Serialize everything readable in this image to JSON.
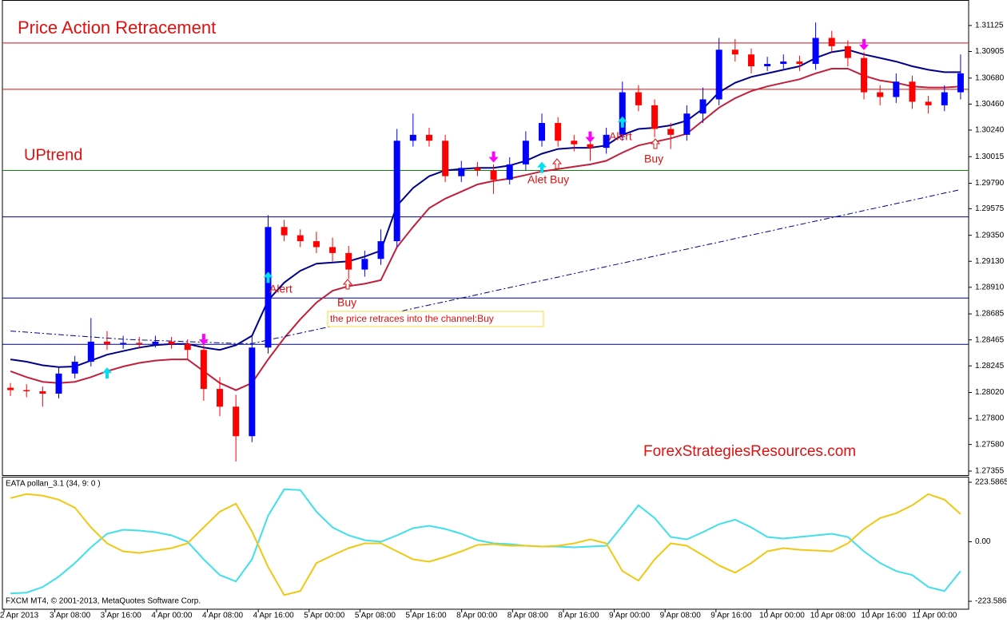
{
  "chart_data": [
    {
      "type": "candlestick",
      "title": "Price Action Retracement",
      "watermark": "ForexStrategiesResources.com",
      "annotations": [
        "UPtrend",
        "Alert",
        "Buy",
        "the price retraces into the channel:Buy",
        "Alet Buy",
        "Alert",
        "Buy"
      ],
      "up_color": "#0000ff",
      "down_color": "#ff0000",
      "open": [
        1.2806,
        1.2804,
        1.2803,
        1.2801,
        1.2818,
        1.2828,
        1.2845,
        1.2843,
        1.2844,
        1.2843,
        1.2845,
        1.2843,
        1.2838,
        1.2805,
        1.279,
        1.2765,
        1.284,
        1.2942,
        1.2935,
        1.293,
        1.2925,
        1.292,
        1.2906,
        1.2915,
        1.293,
        1.3015,
        1.302,
        1.3015,
        1.2985,
        1.2992,
        1.299,
        1.2982,
        1.2995,
        1.3015,
        1.303,
        1.3015,
        1.3012,
        1.3009,
        1.302,
        1.3056,
        1.3045,
        1.3025,
        1.302,
        1.3038,
        1.305,
        1.3092,
        1.3088,
        1.3078,
        1.308,
        1.3082,
        1.308,
        1.3102,
        1.3095,
        1.3085,
        1.3056,
        1.3052,
        1.3065,
        1.3048,
        1.3045,
        1.3056
      ],
      "high": [
        1.281,
        1.2809,
        1.2807,
        1.2823,
        1.2833,
        1.2865,
        1.2854,
        1.285,
        1.2849,
        1.285,
        1.2849,
        1.2847,
        1.2842,
        1.2815,
        1.28,
        1.285,
        1.2952,
        1.2948,
        1.294,
        1.2938,
        1.2933,
        1.2926,
        1.2922,
        1.294,
        1.3025,
        1.3038,
        1.3026,
        1.302,
        1.2998,
        1.2997,
        1.2995,
        1.3001,
        1.3023,
        1.3038,
        1.3035,
        1.302,
        1.3018,
        1.3026,
        1.3065,
        1.3062,
        1.305,
        1.303,
        1.3045,
        1.306,
        1.3102,
        1.3101,
        1.3093,
        1.3086,
        1.3088,
        1.3087,
        1.3115,
        1.3108,
        1.31,
        1.309,
        1.3062,
        1.3072,
        1.307,
        1.3053,
        1.3062,
        1.3088
      ],
      "low": [
        1.2799,
        1.2798,
        1.279,
        1.2797,
        1.2814,
        1.2824,
        1.2838,
        1.2839,
        1.2839,
        1.284,
        1.2839,
        1.283,
        1.2795,
        1.2782,
        1.27436,
        1.276,
        1.2835,
        1.293,
        1.2925,
        1.292,
        1.2913,
        1.2898,
        1.29,
        1.291,
        1.2925,
        1.301,
        1.301,
        1.298,
        1.298,
        1.2985,
        1.297,
        1.2978,
        1.299,
        1.301,
        1.301,
        1.3006,
        1.2998,
        1.3004,
        1.3015,
        1.304,
        1.3018,
        1.3008,
        1.3015,
        1.303,
        1.3045,
        1.3082,
        1.3072,
        1.3074,
        1.3076,
        1.3074,
        1.3075,
        1.309,
        1.3078,
        1.305,
        1.3045,
        1.3047,
        1.3042,
        1.3038,
        1.304,
        1.305
      ],
      "close": [
        1.2804,
        1.2803,
        1.2801,
        1.2818,
        1.2828,
        1.2845,
        1.2843,
        1.2844,
        1.2843,
        1.2845,
        1.2843,
        1.2838,
        1.2805,
        1.279,
        1.2765,
        1.284,
        1.2942,
        1.2935,
        1.293,
        1.2925,
        1.292,
        1.2906,
        1.2915,
        1.293,
        1.3015,
        1.302,
        1.3015,
        1.2985,
        1.2992,
        1.299,
        1.2982,
        1.2995,
        1.3015,
        1.303,
        1.3015,
        1.3012,
        1.3009,
        1.302,
        1.3056,
        1.3045,
        1.3025,
        1.302,
        1.3038,
        1.305,
        1.3092,
        1.3088,
        1.3078,
        1.308,
        1.3082,
        1.308,
        1.3102,
        1.3095,
        1.3085,
        1.3056,
        1.3052,
        1.3065,
        1.3048,
        1.3045,
        1.3056,
        1.3072
      ],
      "series": [
        {
          "color": "#00008b",
          "style": "solid",
          "values": [
            1.283,
            1.2828,
            1.2825,
            1.28235,
            1.2824,
            1.2829,
            1.2834,
            1.2837,
            1.284,
            1.2842,
            1.2843,
            1.2843,
            1.284,
            1.2838,
            1.2842,
            1.285,
            1.288,
            1.2895,
            1.2905,
            1.2911,
            1.2912,
            1.2913,
            1.2917,
            1.2922,
            1.296,
            1.2975,
            1.2985,
            1.299,
            1.2991,
            1.2992,
            1.2992,
            1.2994,
            1.2998,
            1.3004,
            1.3008,
            1.3009,
            1.3009,
            1.3011,
            1.302,
            1.3025,
            1.3026,
            1.3028,
            1.3032,
            1.3042,
            1.3056,
            1.3064,
            1.3069,
            1.3072,
            1.3075,
            1.3078,
            1.3085,
            1.309,
            1.3092,
            1.3088,
            1.3085,
            1.3082,
            1.3078,
            1.3075,
            1.3073,
            1.3073
          ]
        },
        {
          "color": "#c0203c",
          "style": "solid",
          "values": [
            1.282,
            1.2815,
            1.2811,
            1.281,
            1.2811,
            1.2815,
            1.282,
            1.2824,
            1.2827,
            1.2829,
            1.283,
            1.283,
            1.282,
            1.281,
            1.2804,
            1.281,
            1.283,
            1.2848,
            1.2864,
            1.2878,
            1.2888,
            1.2892,
            1.2894,
            1.2897,
            1.2925,
            1.2942,
            1.2958,
            1.2966,
            1.2972,
            1.2978,
            1.2981,
            1.2983,
            1.2986,
            1.2989,
            1.2991,
            1.2993,
            1.2995,
            1.2998,
            1.3005,
            1.3011,
            1.3014,
            1.3017,
            1.3021,
            1.3032,
            1.3043,
            1.3051,
            1.3057,
            1.3061,
            1.3064,
            1.3067,
            1.3072,
            1.3076,
            1.3076,
            1.307,
            1.3066,
            1.3064,
            1.3061,
            1.306,
            1.306,
            1.3061
          ]
        },
        {
          "color": "#00008b",
          "style": "dashdot",
          "values": [
            1.2854,
            1.2853,
            1.2852,
            1.2851,
            1.285,
            1.2849,
            1.2848,
            1.2847,
            1.28465,
            1.2846,
            1.28455,
            1.2845,
            1.28445,
            1.2844,
            1.28435,
            1.28434,
            1.28464,
            1.28493,
            1.28523,
            1.28552,
            1.28582,
            1.28612,
            1.28641,
            1.28671,
            1.287,
            1.2873,
            1.2876,
            1.28789,
            1.28819,
            1.28848,
            1.28878,
            1.28908,
            1.28937,
            1.28967,
            1.28996,
            1.29026,
            1.29056,
            1.29085,
            1.29115,
            1.29144,
            1.29174,
            1.29204,
            1.29233,
            1.29263,
            1.29292,
            1.29322,
            1.29352,
            1.29381,
            1.29411,
            1.2944,
            1.2947,
            1.295,
            1.29529,
            1.29559,
            1.29588,
            1.29618,
            1.29648,
            1.29677,
            1.29707,
            1.29736
          ]
        }
      ],
      "signals": {
        "up_color": "#00e0f0",
        "down_color": "#ff00ff",
        "up": [
          null,
          null,
          null,
          null,
          null,
          null,
          1.28232,
          null,
          null,
          null,
          null,
          null,
          null,
          null,
          null,
          null,
          1.29041,
          null,
          null,
          null,
          null,
          null,
          null,
          null,
          null,
          null,
          null,
          null,
          null,
          null,
          null,
          null,
          null,
          1.29972,
          null,
          null,
          null,
          null,
          1.30356,
          null,
          null,
          null,
          null,
          null,
          null,
          null,
          null,
          null,
          null,
          null,
          null,
          null,
          null,
          null,
          null,
          null,
          null,
          null,
          null,
          null
        ],
        "down": [
          null,
          null,
          null,
          null,
          null,
          null,
          null,
          null,
          null,
          null,
          null,
          null,
          1.28421,
          null,
          null,
          null,
          null,
          null,
          null,
          null,
          null,
          null,
          null,
          null,
          null,
          null,
          null,
          null,
          null,
          null,
          1.29965,
          null,
          null,
          null,
          null,
          null,
          1.30134,
          null,
          null,
          null,
          null,
          null,
          null,
          null,
          null,
          null,
          null,
          null,
          null,
          null,
          null,
          null,
          null,
          1.30916,
          null,
          null,
          null,
          null,
          null,
          null
        ]
      },
      "hlines": [
        {
          "value": 1.30977,
          "color": "#d01010"
        },
        {
          "value": 1.30585,
          "color": "#d01010"
        },
        {
          "value": 1.29898,
          "color": "#108010"
        },
        {
          "value": 1.29506,
          "color": "#000080"
        },
        {
          "value": 1.28819,
          "color": "#000080"
        },
        {
          "value": 1.28427,
          "color": "#000080"
        }
      ],
      "x_labels": [
        "2 Apr 2013",
        "3 Apr 08:00",
        "3 Apr 16:00",
        "4 Apr 00:00",
        "4 Apr 08:00",
        "4 Apr 16:00",
        "5 Apr 00:00",
        "5 Apr 08:00",
        "5 Apr 16:00",
        "8 Apr 00:00",
        "8 Apr 08:00",
        "8 Apr 16:00",
        "9 Apr 00:00",
        "9 Apr 08:00",
        "9 Apr 16:00",
        "10 Apr 00:00",
        "10 Apr 08:00",
        "10 Apr 16:00",
        "11 Apr 00:00"
      ],
      "ylim": [
        1.27321,
        1.31334
      ],
      "yticks": [
        1.31125,
        1.30905,
        {
          "value": 1.3068,
          "label": "1.30680"
        },
        {
          "value": 1.3046,
          "label": "1.30460"
        },
        {
          "value": 1.3024,
          "label": "1.30240"
        },
        1.30015,
        {
          "value": 1.2979,
          "label": "1.29790"
        },
        1.29575,
        {
          "value": 1.2935,
          "label": "1.29350"
        },
        {
          "value": 1.2913,
          "label": "1.29130"
        },
        {
          "value": 1.2891,
          "label": "1.28910"
        },
        1.28685,
        1.28465,
        1.28245,
        {
          "value": 1.2802,
          "label": "1.28020"
        },
        {
          "value": 1.278,
          "label": "1.27800"
        },
        {
          "value": 1.2758,
          "label": "1.27580"
        },
        1.27355
      ]
    },
    {
      "type": "line",
      "title": "EATA pollan_3.1 (34, 9: 0 )",
      "footer": "FXCM MT4, © 2001-2013, MetaQuotes Software Corp.",
      "series": [
        {
          "color": "#40e0ea",
          "values": [
            -194,
            -191,
            -170,
            -131,
            -80,
            -21,
            30,
            45,
            42,
            36,
            24,
            0,
            -66,
            -125,
            -149,
            -66,
            98,
            197,
            194,
            113,
            54,
            24,
            6,
            0,
            24,
            51,
            60,
            48,
            30,
            6,
            -6,
            -9,
            -15,
            -18,
            -18,
            -21,
            -18,
            -15,
            60,
            137,
            89,
            18,
            9,
            36,
            66,
            83,
            54,
            18,
            12,
            18,
            24,
            30,
            18,
            -36,
            -80,
            -110,
            -125,
            -170,
            -185,
            -110
          ]
        },
        {
          "color": "#f0c814",
          "values": [
            164,
            179,
            173,
            158,
            128,
            54,
            -6,
            -36,
            -42,
            -33,
            -24,
            -6,
            54,
            113,
            143,
            39,
            -95,
            -200,
            -185,
            -80,
            -51,
            -24,
            -6,
            -6,
            -36,
            -66,
            -75,
            -57,
            -36,
            -12,
            -9,
            -15,
            -15,
            -18,
            -15,
            -6,
            9,
            -6,
            -110,
            -146,
            -66,
            -6,
            -15,
            -51,
            -89,
            -116,
            -80,
            -36,
            -24,
            -30,
            -33,
            -36,
            -6,
            48,
            89,
            107,
            137,
            179,
            158,
            104
          ]
        }
      ],
      "ylim": [
        -253.4,
        241.5
      ],
      "yticks": [
        223.5865,
        {
          "value": 0,
          "label": "0.00"
        },
        -223.5865
      ]
    }
  ]
}
